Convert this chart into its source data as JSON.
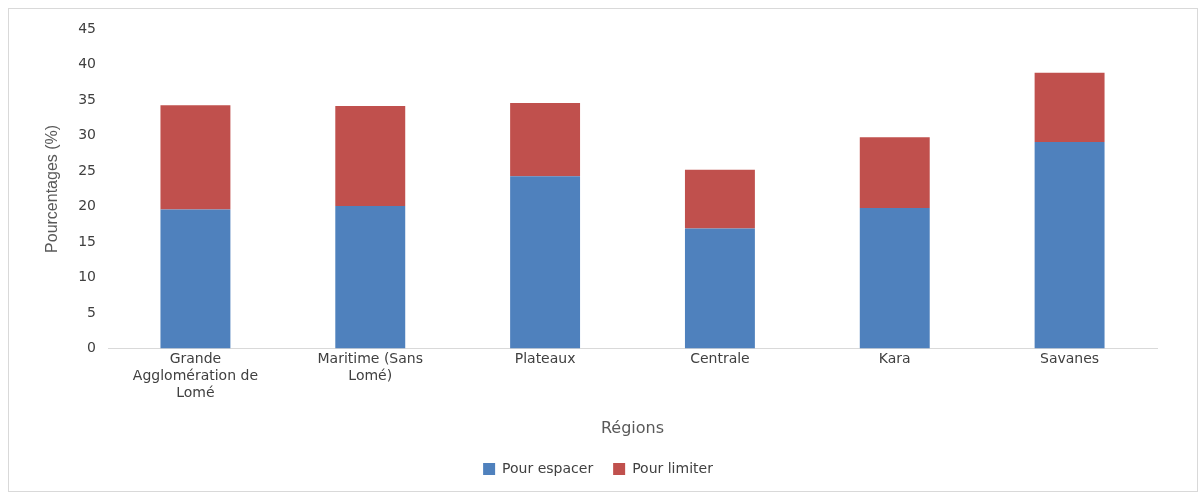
{
  "chart_data": {
    "type": "bar",
    "stacked": true,
    "xlabel": "Régions",
    "ylabel": "Pourcentages (%)",
    "categories": [
      "Grande Agglomération de Lomé",
      "Maritime (Sans Lomé)",
      "Plateaux",
      "Centrale",
      "Kara",
      "Savanes"
    ],
    "series": [
      {
        "name": "Pour espacer",
        "color": "#4f81bd",
        "values": [
          19.6,
          20.1,
          24.3,
          16.9,
          19.8,
          29.1
        ]
      },
      {
        "name": "Pour limiter",
        "color": "#c0504d",
        "values": [
          14.7,
          14.1,
          10.3,
          8.3,
          10.0,
          9.8
        ]
      }
    ],
    "ylim": [
      0,
      45
    ],
    "yticks": [
      0,
      5,
      10,
      15,
      20,
      25,
      30,
      35,
      40,
      45
    ],
    "grid": false,
    "legend": "bottom"
  }
}
